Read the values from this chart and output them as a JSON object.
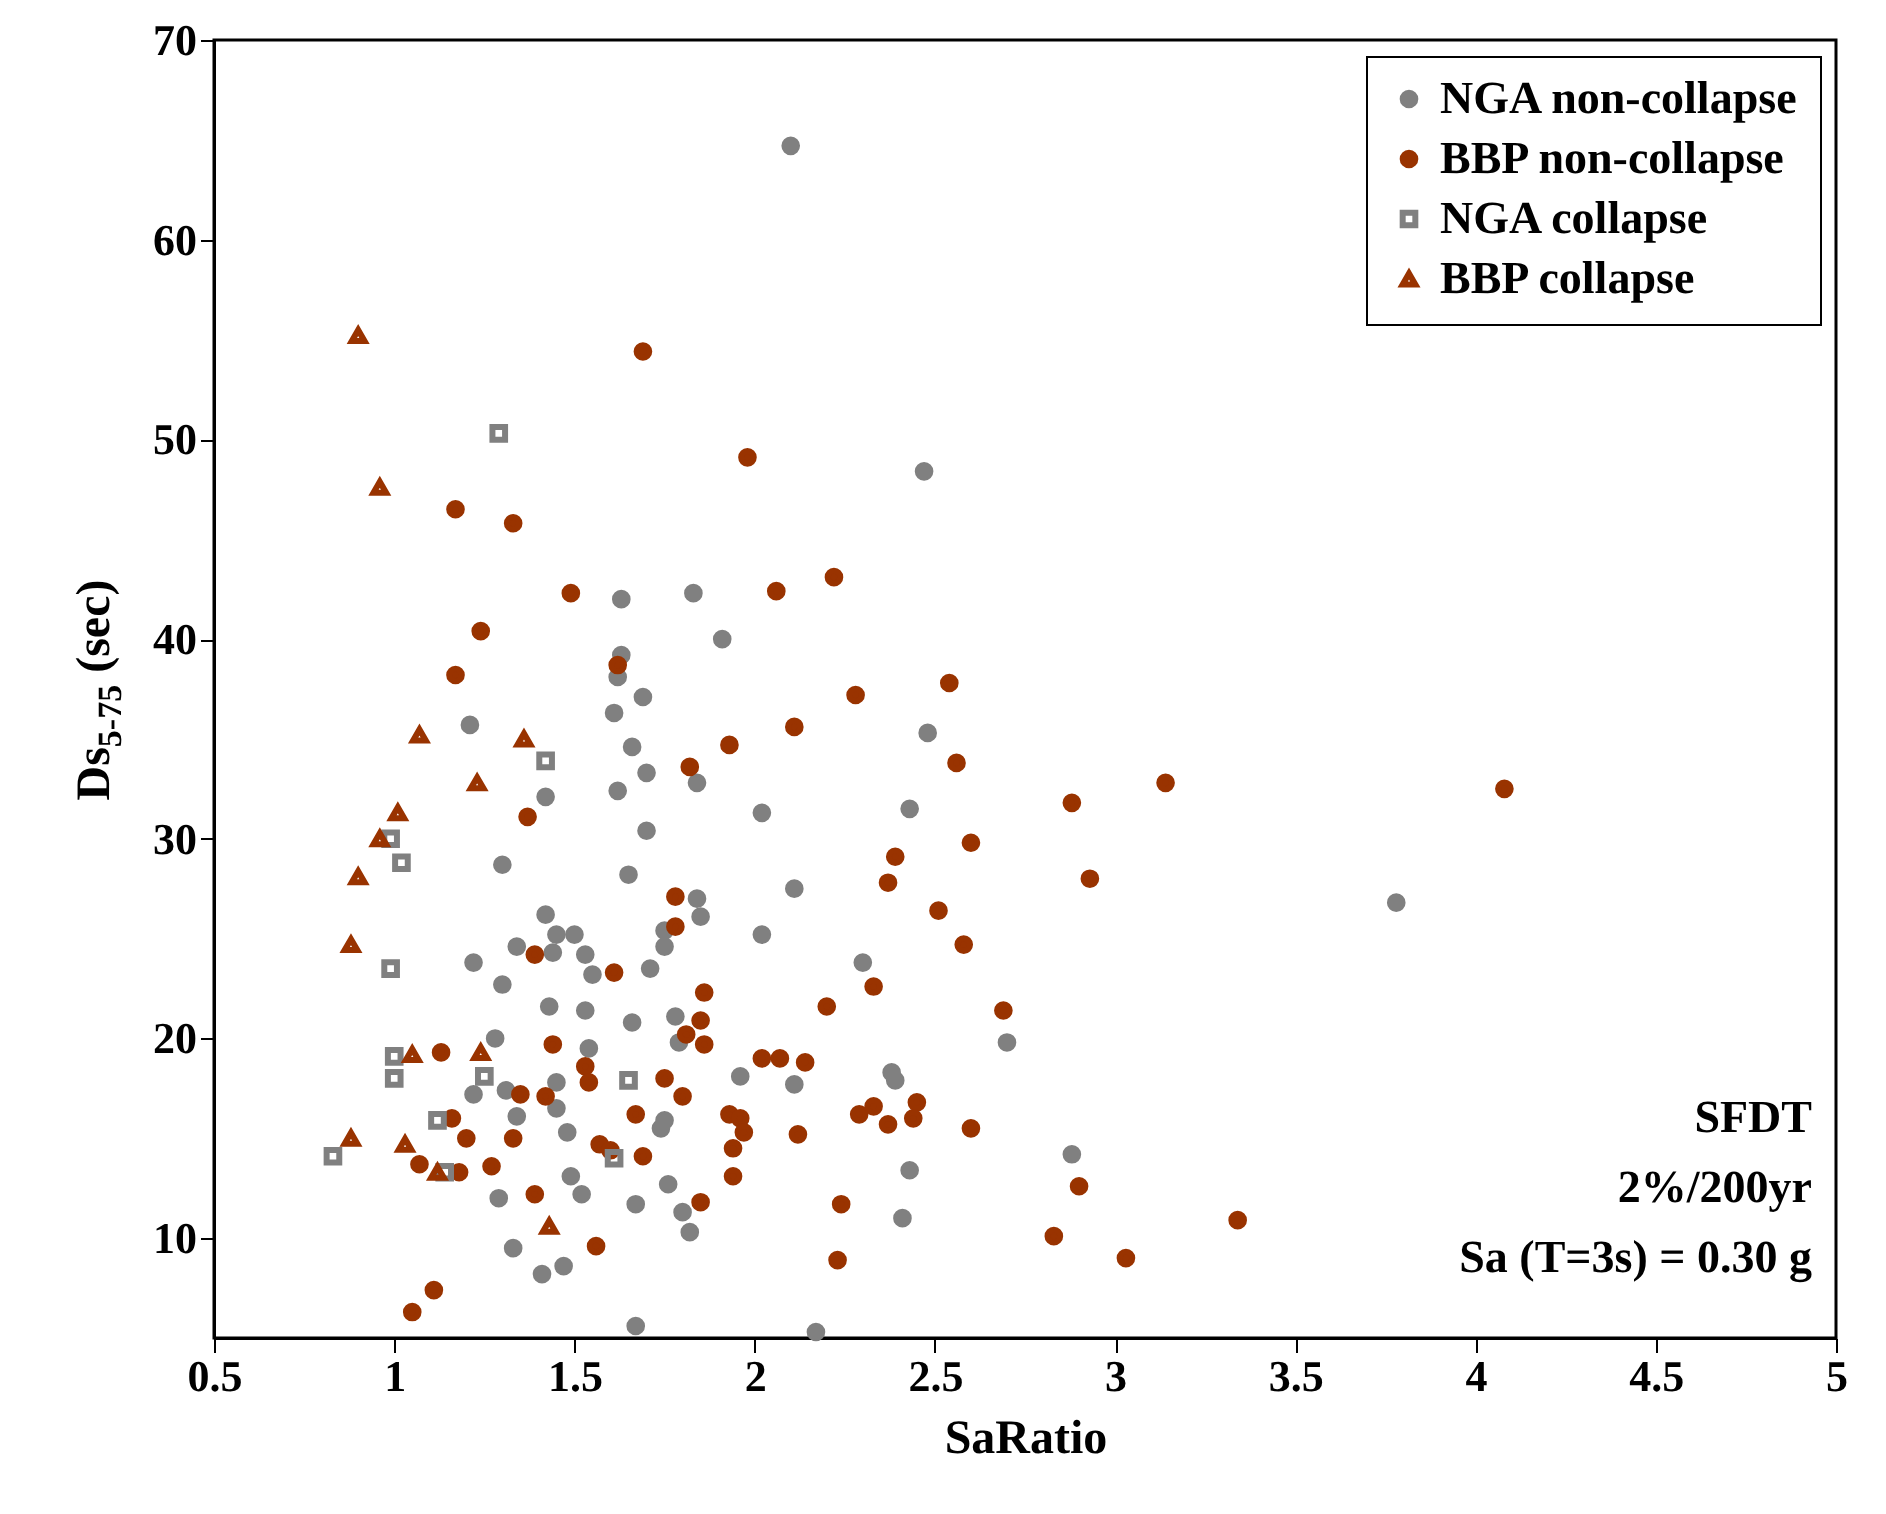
{
  "chart_data": {
    "type": "scatter",
    "xlabel": "SaRatio",
    "ylabel": "Ds$_{5-75}$ (sec)",
    "xlim": [
      0.5,
      5
    ],
    "ylim": [
      5,
      70
    ],
    "xticks": [
      0.5,
      1,
      1.5,
      2,
      2.5,
      3,
      3.5,
      4,
      4.5,
      5
    ],
    "yticks": [
      10,
      20,
      30,
      40,
      50,
      60,
      70
    ],
    "grid": false,
    "legend": "top right",
    "annotations": [
      "SFDT",
      "2%/200yr",
      "Sa (T=3s) = 0.30 g"
    ],
    "series": [
      {
        "name": "NGA non-collapse",
        "color": "#808080",
        "marker": "circle",
        "x": [
          2.1,
          2.47,
          1.63,
          1.83,
          1.91,
          1.63,
          1.62,
          1.69,
          1.21,
          1.42,
          1.3,
          1.42,
          1.45,
          1.5,
          1.44,
          1.53,
          1.55,
          1.34,
          1.22,
          1.3,
          1.53,
          1.43,
          1.66,
          1.28,
          1.54,
          1.45,
          1.22,
          1.31,
          1.34,
          1.45,
          1.48,
          1.49,
          1.52,
          1.29,
          1.33,
          1.41,
          1.47,
          1.67,
          1.61,
          1.66,
          1.62,
          1.65,
          1.7,
          1.84,
          1.7,
          2.02,
          2.48,
          2.43,
          2.11,
          2.02,
          1.84,
          1.85,
          1.75,
          1.75,
          1.71,
          1.78,
          1.79,
          2.3,
          2.7,
          1.96,
          2.11,
          2.38,
          2.39,
          1.75,
          1.74,
          1.76,
          1.67,
          1.8,
          1.82,
          2.43,
          2.41,
          2.17,
          3.78,
          2.88
        ],
        "values": [
          64.7,
          48.4,
          42.0,
          42.3,
          40.0,
          39.2,
          38.1,
          37.1,
          35.7,
          32.1,
          28.7,
          26.2,
          25.2,
          25.2,
          24.3,
          24.2,
          23.2,
          24.6,
          23.8,
          22.7,
          21.4,
          21.6,
          20.8,
          20.0,
          19.5,
          17.8,
          17.2,
          17.4,
          16.1,
          16.5,
          15.3,
          13.1,
          12.2,
          12.0,
          9.5,
          8.2,
          8.6,
          5.6,
          36.3,
          34.6,
          32.4,
          28.2,
          33.3,
          32.8,
          30.4,
          31.3,
          35.3,
          31.5,
          27.5,
          25.2,
          27.0,
          26.1,
          25.4,
          24.6,
          23.5,
          21.1,
          19.8,
          23.8,
          19.8,
          18.1,
          17.7,
          18.3,
          17.9,
          15.9,
          15.5,
          12.7,
          11.7,
          11.3,
          10.3,
          13.4,
          11.0,
          5.3,
          26.8,
          14.2
        ]
      },
      {
        "name": "BBP non-collapse",
        "color": "#993300",
        "marker": "circle",
        "x": [
          1.69,
          1.98,
          1.17,
          1.33,
          1.49,
          2.06,
          2.22,
          1.24,
          1.17,
          1.62,
          2.28,
          2.54,
          1.37,
          1.39,
          1.61,
          1.44,
          1.13,
          1.53,
          1.54,
          1.35,
          1.42,
          1.16,
          1.2,
          1.33,
          1.27,
          1.18,
          1.07,
          1.39,
          1.56,
          1.11,
          1.05,
          1.57,
          1.6,
          1.67,
          1.69,
          2.11,
          1.93,
          1.82,
          2.56,
          2.6,
          2.39,
          2.37,
          2.51,
          2.58,
          1.78,
          1.78,
          2.33,
          2.2,
          2.69,
          1.86,
          1.85,
          1.81,
          1.86,
          2.02,
          2.07,
          2.14,
          1.75,
          1.8,
          1.93,
          1.96,
          1.97,
          1.94,
          1.94,
          2.12,
          2.29,
          2.33,
          2.45,
          2.44,
          2.37,
          2.6,
          1.85,
          2.24,
          2.23,
          3.14,
          4.08,
          2.88,
          2.93,
          2.9,
          2.83,
          3.03,
          3.34
        ],
        "values": [
          54.4,
          49.1,
          46.5,
          45.8,
          42.3,
          42.4,
          43.1,
          40.4,
          38.2,
          38.7,
          37.2,
          37.8,
          31.1,
          24.2,
          23.3,
          19.7,
          19.3,
          18.6,
          17.8,
          17.2,
          17.1,
          16.0,
          15.0,
          15.0,
          13.6,
          13.3,
          13.7,
          12.2,
          9.6,
          7.4,
          6.3,
          14.7,
          14.4,
          16.2,
          14.1,
          35.6,
          34.7,
          33.6,
          33.8,
          29.8,
          29.1,
          27.8,
          26.4,
          24.7,
          27.1,
          25.6,
          22.6,
          21.6,
          21.4,
          22.3,
          20.9,
          20.2,
          19.7,
          19.0,
          19.0,
          18.8,
          18.0,
          17.1,
          16.2,
          16.0,
          15.3,
          14.5,
          13.1,
          15.2,
          16.2,
          16.6,
          16.8,
          16.0,
          15.7,
          15.5,
          11.8,
          11.7,
          8.9,
          32.8,
          32.5,
          31.8,
          28.0,
          12.6,
          10.1,
          9.0,
          10.9
        ]
      },
      {
        "name": "NGA collapse",
        "color": "#808080",
        "marker": "square",
        "x": [
          1.29,
          1.42,
          1.02,
          0.99,
          0.99,
          1.0,
          1.0,
          0.83,
          1.12,
          1.14,
          1.25,
          1.65,
          1.61
        ],
        "values": [
          50.3,
          33.9,
          28.8,
          30.0,
          23.5,
          19.1,
          18.0,
          14.1,
          15.9,
          13.3,
          18.1,
          17.9,
          14.0
        ]
      },
      {
        "name": "BBP collapse",
        "color": "#993300",
        "marker": "triangle",
        "x": [
          0.9,
          0.96,
          1.07,
          1.36,
          1.23,
          1.01,
          0.96,
          0.9,
          0.88,
          1.05,
          1.24,
          0.88,
          1.03,
          1.12,
          1.43
        ],
        "values": [
          55.2,
          47.6,
          35.2,
          35.0,
          32.8,
          31.3,
          30.0,
          28.1,
          24.7,
          19.2,
          19.3,
          15.0,
          14.7,
          13.3,
          10.6
        ]
      }
    ]
  }
}
